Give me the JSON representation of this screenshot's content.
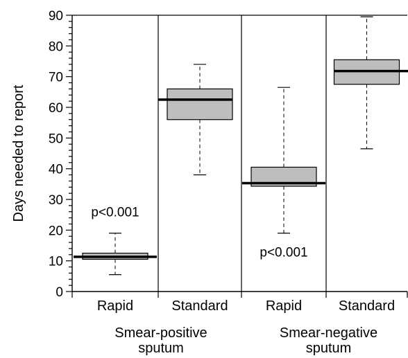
{
  "chart_data": {
    "type": "boxplot",
    "title": "",
    "ylabel": "Days needed to report",
    "xlabel": "",
    "ylim": [
      0,
      90
    ],
    "yticks": [
      0,
      10,
      20,
      30,
      40,
      50,
      60,
      70,
      80,
      90
    ],
    "grid": false,
    "legend": "none",
    "groups": [
      {
        "label_lines": [
          "Smear-positive",
          "sputum"
        ]
      },
      {
        "label_lines": [
          "Smear-negative",
          "sputum"
        ]
      }
    ],
    "boxes": [
      {
        "category": "Rapid",
        "group": 0,
        "min": 5.5,
        "q1": 10.5,
        "median": 11.3,
        "q3": 12.5,
        "max": 19,
        "median_side": "both"
      },
      {
        "category": "Standard",
        "group": 0,
        "min": 38,
        "q1": 56,
        "median": 62.5,
        "q3": 66,
        "max": 74,
        "median_side": "left"
      },
      {
        "category": "Rapid",
        "group": 1,
        "min": 19,
        "q1": 34.3,
        "median": 35.3,
        "q3": 40.5,
        "max": 66.5,
        "median_side": "both"
      },
      {
        "category": "Standard",
        "group": 1,
        "min": 46.5,
        "q1": 67.5,
        "median": 71.8,
        "q3": 75.5,
        "max": 89.5,
        "median_side": "right"
      }
    ],
    "annotations": [
      {
        "text": "p<0.001",
        "box": 0,
        "y": 26
      },
      {
        "text": "p<0.001",
        "box": 2,
        "y": 13
      }
    ],
    "colors": {
      "box_fill": "#bebebe",
      "stroke": "#000000"
    }
  }
}
